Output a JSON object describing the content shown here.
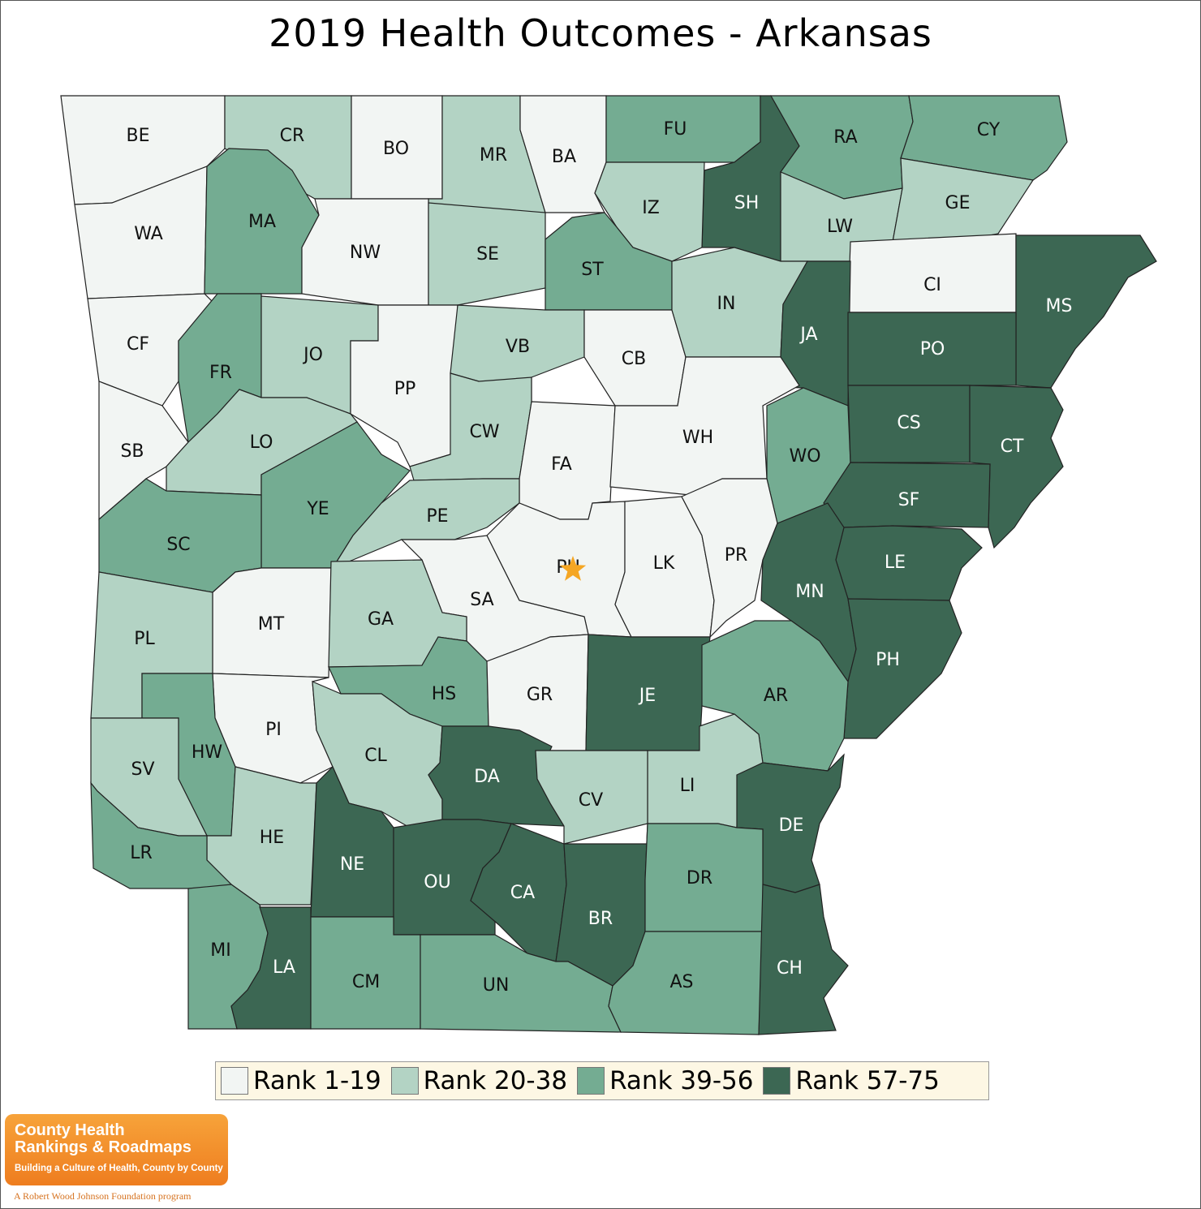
{
  "title": "2019 Health Outcomes - Arkansas",
  "colors": {
    "rank_1_19": "#f2f5f3",
    "rank_20_38": "#b3d3c4",
    "rank_39_56": "#74ac92",
    "rank_57_75": "#3c6753",
    "star": "#f5a623"
  },
  "legend": [
    {
      "label": "Rank 1-19",
      "class": "rank_1_19"
    },
    {
      "label": "Rank 20-38",
      "class": "rank_20_38"
    },
    {
      "label": "Rank 39-56",
      "class": "rank_39_56"
    },
    {
      "label": "Rank 57-75",
      "class": "rank_57_75"
    }
  ],
  "counties": [
    {
      "code": "BE",
      "class": "rank_1_19"
    },
    {
      "code": "CR",
      "class": "rank_20_38"
    },
    {
      "code": "BO",
      "class": "rank_1_19"
    },
    {
      "code": "MR",
      "class": "rank_20_38"
    },
    {
      "code": "BA",
      "class": "rank_1_19"
    },
    {
      "code": "FU",
      "class": "rank_39_56"
    },
    {
      "code": "SH",
      "class": "rank_57_75"
    },
    {
      "code": "RA",
      "class": "rank_39_56"
    },
    {
      "code": "CY",
      "class": "rank_39_56"
    },
    {
      "code": "WA",
      "class": "rank_1_19"
    },
    {
      "code": "MA",
      "class": "rank_39_56"
    },
    {
      "code": "NW",
      "class": "rank_1_19"
    },
    {
      "code": "SE",
      "class": "rank_20_38"
    },
    {
      "code": "IZ",
      "class": "rank_20_38"
    },
    {
      "code": "LW",
      "class": "rank_20_38"
    },
    {
      "code": "GE",
      "class": "rank_20_38"
    },
    {
      "code": "ST",
      "class": "rank_39_56"
    },
    {
      "code": "CI",
      "class": "rank_1_19"
    },
    {
      "code": "MS",
      "class": "rank_57_75"
    },
    {
      "code": "CF",
      "class": "rank_1_19"
    },
    {
      "code": "FR",
      "class": "rank_39_56"
    },
    {
      "code": "JO",
      "class": "rank_20_38"
    },
    {
      "code": "PP",
      "class": "rank_1_19"
    },
    {
      "code": "VB",
      "class": "rank_20_38"
    },
    {
      "code": "CB",
      "class": "rank_1_19"
    },
    {
      "code": "IN",
      "class": "rank_20_38"
    },
    {
      "code": "JA",
      "class": "rank_57_75"
    },
    {
      "code": "PO",
      "class": "rank_57_75"
    },
    {
      "code": "SB",
      "class": "rank_1_19"
    },
    {
      "code": "LO",
      "class": "rank_20_38"
    },
    {
      "code": "CW",
      "class": "rank_20_38"
    },
    {
      "code": "FA",
      "class": "rank_1_19"
    },
    {
      "code": "WH",
      "class": "rank_1_19"
    },
    {
      "code": "WO",
      "class": "rank_39_56"
    },
    {
      "code": "CS",
      "class": "rank_57_75"
    },
    {
      "code": "CT",
      "class": "rank_57_75"
    },
    {
      "code": "YE",
      "class": "rank_39_56"
    },
    {
      "code": "PE",
      "class": "rank_20_38"
    },
    {
      "code": "SF",
      "class": "rank_57_75"
    },
    {
      "code": "SC",
      "class": "rank_39_56"
    },
    {
      "code": "PU",
      "class": "rank_1_19"
    },
    {
      "code": "LK",
      "class": "rank_1_19"
    },
    {
      "code": "PR",
      "class": "rank_1_19"
    },
    {
      "code": "LE",
      "class": "rank_57_75"
    },
    {
      "code": "MN",
      "class": "rank_57_75"
    },
    {
      "code": "SA",
      "class": "rank_1_19"
    },
    {
      "code": "MT",
      "class": "rank_1_19"
    },
    {
      "code": "GA",
      "class": "rank_20_38"
    },
    {
      "code": "PL",
      "class": "rank_20_38"
    },
    {
      "code": "PH",
      "class": "rank_57_75"
    },
    {
      "code": "HS",
      "class": "rank_39_56"
    },
    {
      "code": "GR",
      "class": "rank_1_19"
    },
    {
      "code": "JE",
      "class": "rank_57_75"
    },
    {
      "code": "AR",
      "class": "rank_39_56"
    },
    {
      "code": "PI",
      "class": "rank_1_19"
    },
    {
      "code": "HW",
      "class": "rank_39_56"
    },
    {
      "code": "CL",
      "class": "rank_20_38"
    },
    {
      "code": "DA",
      "class": "rank_57_75"
    },
    {
      "code": "SV",
      "class": "rank_20_38"
    },
    {
      "code": "LI",
      "class": "rank_20_38"
    },
    {
      "code": "CV",
      "class": "rank_20_38"
    },
    {
      "code": "DE",
      "class": "rank_57_75"
    },
    {
      "code": "HE",
      "class": "rank_20_38"
    },
    {
      "code": "LR",
      "class": "rank_39_56"
    },
    {
      "code": "NE",
      "class": "rank_57_75"
    },
    {
      "code": "OU",
      "class": "rank_57_75"
    },
    {
      "code": "CA",
      "class": "rank_57_75"
    },
    {
      "code": "BR",
      "class": "rank_57_75"
    },
    {
      "code": "DR",
      "class": "rank_39_56"
    },
    {
      "code": "MI",
      "class": "rank_39_56"
    },
    {
      "code": "LA",
      "class": "rank_57_75"
    },
    {
      "code": "CM",
      "class": "rank_39_56"
    },
    {
      "code": "UN",
      "class": "rank_39_56"
    },
    {
      "code": "AS",
      "class": "rank_39_56"
    },
    {
      "code": "CH",
      "class": "rank_57_75"
    }
  ],
  "capital_county": "PU",
  "logo": {
    "line1": "County Health",
    "line2": "Rankings & Roadmaps",
    "tagline": "Building a Culture of Health, County by County",
    "footer": "A Robert Wood Johnson Foundation program"
  }
}
